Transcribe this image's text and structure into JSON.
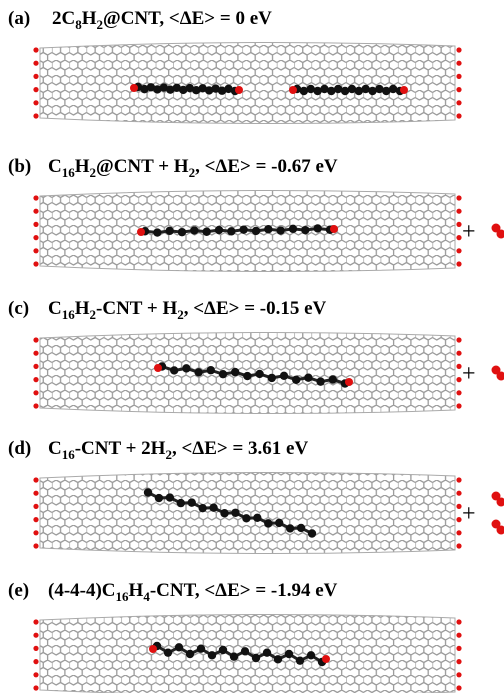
{
  "panels": [
    {
      "label": "(a)",
      "title": [
        {
          "text": "2C"
        },
        {
          "sub": "8"
        },
        {
          "text": "H"
        },
        {
          "sub": "2"
        },
        {
          "text": "@CNT, <ΔE> = 0 eV"
        }
      ]
    },
    {
      "label": "(b)",
      "title": [
        {
          "text": "C"
        },
        {
          "sub": "16"
        },
        {
          "text": "H"
        },
        {
          "sub": "2"
        },
        {
          "text": "@CNT + H"
        },
        {
          "sub": "2"
        },
        {
          "text": ", <ΔE> = -0.67 eV"
        }
      ],
      "plus": "+"
    },
    {
      "label": "(c)",
      "title": [
        {
          "text": "C"
        },
        {
          "sub": "16"
        },
        {
          "text": "H"
        },
        {
          "sub": "2"
        },
        {
          "text": "-CNT + H"
        },
        {
          "sub": "2"
        },
        {
          "text": ", <ΔE> = -0.15 eV"
        }
      ],
      "plus": "+"
    },
    {
      "label": "(d)",
      "title": [
        {
          "text": "C"
        },
        {
          "sub": "16"
        },
        {
          "text": "-CNT + 2H"
        },
        {
          "sub": "2"
        },
        {
          "text": ", <ΔE> = 3.61 eV"
        }
      ],
      "plus": "+"
    },
    {
      "label": "(e)",
      "title": [
        {
          "text": "(4-4-4)C"
        },
        {
          "sub": "16"
        },
        {
          "text": "H"
        },
        {
          "sub": "4"
        },
        {
          "text": "-CNT, <ΔE> = -1.94 eV"
        }
      ]
    }
  ]
}
